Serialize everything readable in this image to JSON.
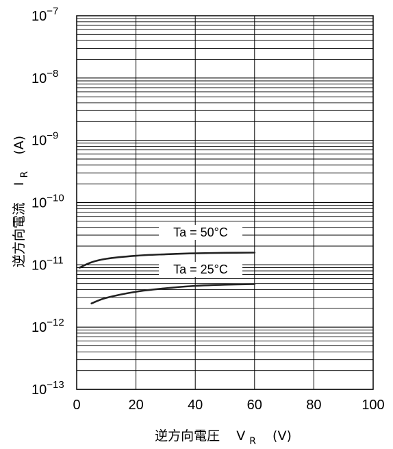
{
  "chart_data": {
    "type": "line",
    "title": "",
    "xlabel": {
      "main": "逆方向電圧",
      "sym": "V",
      "sub": "R",
      "unit": "(V)"
    },
    "ylabel": {
      "main": "逆方向電流",
      "sym": "I",
      "sub": "R",
      "unit": "(A)"
    },
    "xlim": [
      0,
      100
    ],
    "ylim": [
      1e-13,
      1e-07
    ],
    "yscale": "log",
    "grid": true,
    "x_ticks": [
      "0",
      "20",
      "40",
      "60",
      "80",
      "100"
    ],
    "y_ticks": [
      {
        "value": 1e-07,
        "base": "10",
        "exp": "−7"
      },
      {
        "value": 1e-08,
        "base": "10",
        "exp": "−8"
      },
      {
        "value": 1e-09,
        "base": "10",
        "exp": "−9"
      },
      {
        "value": 1e-10,
        "base": "10",
        "exp": "−10"
      },
      {
        "value": 1e-11,
        "base": "10",
        "exp": "−11"
      },
      {
        "value": 1e-12,
        "base": "10",
        "exp": "−12"
      },
      {
        "value": 1e-13,
        "base": "10",
        "exp": "−13"
      }
    ],
    "series": [
      {
        "name": "Ta = 50°C",
        "x": [
          1,
          5,
          10,
          20,
          30,
          40,
          50,
          60
        ],
        "y": [
          9e-12,
          1.1e-11,
          1.25e-11,
          1.4e-11,
          1.48e-11,
          1.53e-11,
          1.56e-11,
          1.57e-11
        ]
      },
      {
        "name": "Ta = 25°C",
        "x": [
          5,
          10,
          20,
          30,
          40,
          50,
          60
        ],
        "y": [
          2.4e-12,
          2.95e-12,
          3.7e-12,
          4.2e-12,
          4.6e-12,
          4.8e-12,
          4.9e-12
        ]
      }
    ]
  }
}
